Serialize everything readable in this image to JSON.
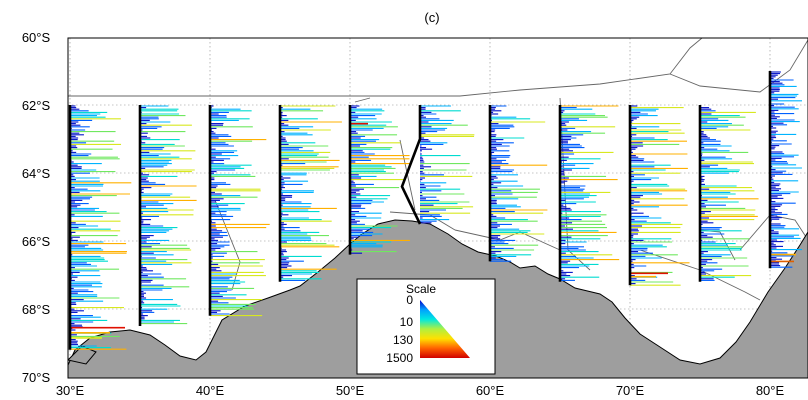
{
  "panel_label": "(c)",
  "lat_labels": [
    {
      "deg": -60,
      "text": "60°S"
    },
    {
      "deg": -62,
      "text": "62°S"
    },
    {
      "deg": -64,
      "text": "64°S"
    },
    {
      "deg": -66,
      "text": "66°S"
    },
    {
      "deg": -68,
      "text": "68°S"
    },
    {
      "deg": -70,
      "text": "70°S"
    }
  ],
  "lon_labels": [
    {
      "deg": 30,
      "text": "30°E"
    },
    {
      "deg": 40,
      "text": "40°E"
    },
    {
      "deg": 50,
      "text": "50°E"
    },
    {
      "deg": 60,
      "text": "60°E"
    },
    {
      "deg": 70,
      "text": "70°E"
    },
    {
      "deg": 80,
      "text": "80°E"
    }
  ],
  "map_extent": {
    "lon_min": 28,
    "lon_max": 84,
    "lat_min": -70,
    "lat_max": -60
  },
  "grid": true,
  "colors": {
    "land": "#9e9e9e",
    "grid": "#8a8a8a",
    "transect": "#000000"
  },
  "transects": [
    {
      "lon": 30,
      "lat_top": -62,
      "lat_bottom": -69.2
    },
    {
      "lon": 35,
      "lat_top": -62,
      "lat_bottom": -68.5
    },
    {
      "lon": 40,
      "lat_top": -62,
      "lat_bottom": -68.2
    },
    {
      "lon": 45,
      "lat_top": -62,
      "lat_bottom": -67.2
    },
    {
      "lon": 50,
      "lat_top": -62,
      "lat_bottom": -66.4
    },
    {
      "lon": 55,
      "lat_top": -62,
      "lat_bottom": -65.5
    },
    {
      "lon": 60,
      "lat_top": -62,
      "lat_bottom": -66.6
    },
    {
      "lon": 65,
      "lat_top": -62,
      "lat_bottom": -67.2
    },
    {
      "lon": 70,
      "lat_top": -62,
      "lat_bottom": -67.3
    },
    {
      "lon": 75,
      "lat_top": -62,
      "lat_bottom": -67.2
    },
    {
      "lon": 80,
      "lat_top": -61,
      "lat_bottom": -66.8
    }
  ],
  "legend": {
    "title": "Scale",
    "ticks": [
      "0",
      "10",
      "130",
      "1500"
    ],
    "gradient": [
      "#0000c8",
      "#00a0ff",
      "#00e8e0",
      "#b0f040",
      "#ffe000",
      "#ff6000",
      "#d00000"
    ]
  }
}
